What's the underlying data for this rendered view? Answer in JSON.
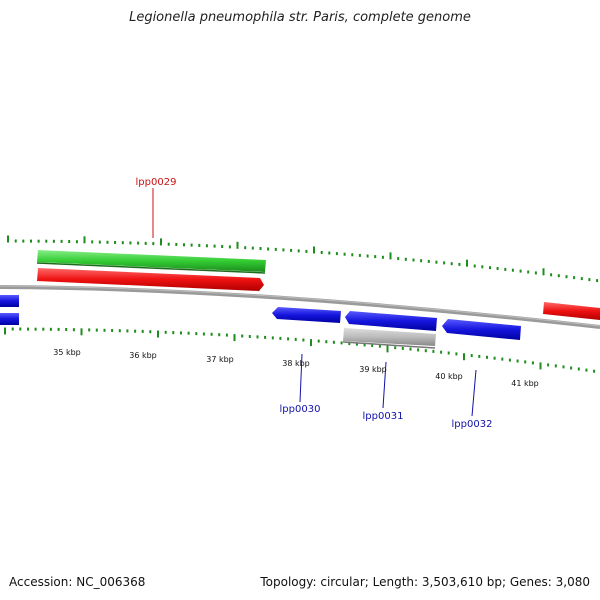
{
  "title": "Legionella pneumophila str. Paris, complete genome",
  "footer": {
    "accession": "Accession: NC_006368",
    "summary": "Topology: circular; Length: 3,503,610 bp; Genes: 3,080"
  },
  "colors": {
    "backbone": "#808080",
    "tick": "#1e8c1e",
    "forward_cds": "#ee1111",
    "reverse_cds": "#1515dd",
    "orf": "#33cc33",
    "other": "#bbbbbb",
    "forward_label": "#cc1111",
    "reverse_label": "#1111aa"
  },
  "ruler": {
    "kbp_labels": [
      "35 kbp",
      "36 kbp",
      "37 kbp",
      "38 kbp",
      "39 kbp",
      "40 kbp",
      "41 kbp"
    ]
  },
  "gene_labels": [
    {
      "name": "lpp0029",
      "strand": "forward"
    },
    {
      "name": "lpp0030",
      "strand": "reverse"
    },
    {
      "name": "lpp0031",
      "strand": "reverse"
    },
    {
      "name": "lpp0032",
      "strand": "reverse"
    }
  ]
}
